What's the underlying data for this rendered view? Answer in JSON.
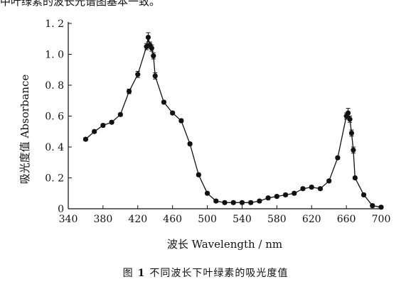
{
  "top_fragment": "中叶绿素的波长光谱图基本一致。",
  "caption": {
    "prefix": "图",
    "number": "1",
    "text": "不同波长下叶绿素的吸光度值"
  },
  "chart_data": {
    "type": "line",
    "xlabel": "波长 Wavelength / nm",
    "ylabel": "吸光度值 Absorbance",
    "xlim": [
      340,
      700
    ],
    "ylim": [
      0,
      1.2
    ],
    "xticks": [
      340,
      380,
      420,
      460,
      500,
      540,
      580,
      620,
      660,
      700
    ],
    "xtick_labels": [
      "340",
      "380",
      "420",
      "460",
      "500",
      "540",
      "580",
      "620",
      "660",
      "700"
    ],
    "yticks": [
      0,
      0.2,
      0.4,
      0.6,
      0.8,
      1.0,
      1.2
    ],
    "ytick_labels": [
      "0",
      "0. 2",
      "0. 4",
      "0. 6",
      "0. 8",
      "1. 0",
      "1. 2"
    ],
    "grid": false,
    "series": [
      {
        "x": [
          360,
          370,
          380,
          390,
          400,
          410,
          420,
          430,
          432,
          434,
          436,
          438,
          440,
          450,
          460,
          470,
          480,
          490,
          500,
          510,
          520,
          530,
          540,
          550,
          560,
          570,
          580,
          590,
          600,
          610,
          620,
          630,
          640,
          650,
          660,
          662,
          664,
          666,
          668,
          670,
          680,
          690,
          700
        ],
        "y": [
          0.45,
          0.5,
          0.54,
          0.56,
          0.61,
          0.76,
          0.87,
          1.05,
          1.11,
          1.06,
          1.04,
          0.99,
          0.86,
          0.69,
          0.62,
          0.57,
          0.42,
          0.22,
          0.1,
          0.05,
          0.04,
          0.04,
          0.04,
          0.04,
          0.05,
          0.07,
          0.08,
          0.09,
          0.1,
          0.13,
          0.14,
          0.13,
          0.18,
          0.33,
          0.6,
          0.62,
          0.58,
          0.49,
          0.38,
          0.2,
          0.09,
          0.02,
          0.01
        ],
        "error": [
          0.01,
          0.01,
          0.01,
          0.01,
          0.01,
          0.015,
          0.02,
          0.02,
          0.03,
          0.02,
          0.02,
          0.02,
          0.02,
          0.01,
          0.01,
          0.01,
          0.01,
          0.01,
          0.01,
          0.01,
          0.01,
          0.01,
          0.01,
          0.01,
          0.01,
          0.01,
          0.01,
          0.01,
          0.01,
          0.01,
          0.01,
          0.01,
          0.01,
          0.01,
          0.02,
          0.03,
          0.02,
          0.02,
          0.02,
          0.01,
          0.01,
          0.01,
          0.01
        ]
      }
    ]
  }
}
